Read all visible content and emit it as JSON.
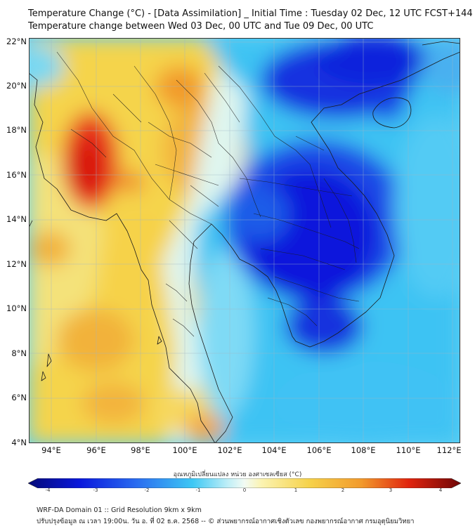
{
  "header": {
    "title": "Temperature Change (°C) - [Data Assimilation] _ Initial Time : Tuesday 02 Dec, 12 UTC FCST+144",
    "subtitle": "Temperature change between Wed 03 Dec, 00 UTC and Tue 09 Dec, 00 UTC"
  },
  "map": {
    "lat_labels": [
      "22°N",
      "20°N",
      "18°N",
      "16°N",
      "14°N",
      "12°N",
      "10°N",
      "8°N",
      "6°N",
      "4°N"
    ],
    "lon_labels": [
      "94°E",
      "96°E",
      "98°E",
      "100°E",
      "102°E",
      "104°E",
      "106°E",
      "108°E",
      "110°E",
      "112°E"
    ],
    "lat_range": [
      4,
      22
    ],
    "lon_range": [
      93,
      112.3
    ],
    "field_note_colors": {
      "warm_max": "#d8180c",
      "warm": "#f6c23c",
      "neutral": "#e9f7ef",
      "cool": "#45c8f0",
      "cold_max": "#0a16dc"
    }
  },
  "colorbar": {
    "title": "อุณหภูมิเปลี่ยนแปลง หน่วย องศาเซลเซียส (°C)",
    "ticks": [
      "-4",
      "-3",
      "-2",
      "-1",
      "0",
      "1",
      "2",
      "3",
      "4"
    ],
    "range": [
      -4,
      4
    ]
  },
  "footer": {
    "line1": "WRF-DA Domain 01 :: Grid Resolution 9km x 9km",
    "line2": "ปรับปรุงข้อมูล ณ เวลา 19:00น. วัน อ. ที่ 02 ธ.ค. 2568 -- © ส่วนพยากรณ์อากาศเชิงตัวเลข กองพยากรณ์อากาศ กรมอุตุนิยมวิทยา"
  }
}
